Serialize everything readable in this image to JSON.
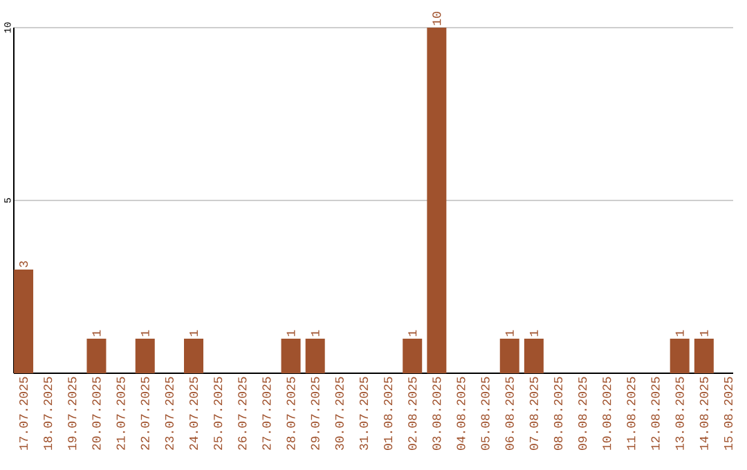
{
  "chart_data": {
    "type": "bar",
    "categories": [
      "17.07.2025",
      "18.07.2025",
      "19.07.2025",
      "20.07.2025",
      "21.07.2025",
      "22.07.2025",
      "23.07.2025",
      "24.07.2025",
      "25.07.2025",
      "26.07.2025",
      "27.07.2025",
      "28.07.2025",
      "29.07.2025",
      "30.07.2025",
      "31.07.2025",
      "01.08.2025",
      "02.08.2025",
      "03.08.2025",
      "04.08.2025",
      "05.08.2025",
      "06.08.2025",
      "07.08.2025",
      "08.08.2025",
      "09.08.2025",
      "10.08.2025",
      "11.08.2025",
      "12.08.2025",
      "13.08.2025",
      "14.08.2025",
      "15.08.2025"
    ],
    "values": [
      3,
      0,
      0,
      1,
      0,
      1,
      0,
      1,
      0,
      0,
      0,
      1,
      1,
      0,
      0,
      0,
      1,
      10,
      0,
      0,
      1,
      1,
      0,
      0,
      0,
      0,
      0,
      1,
      1,
      0
    ],
    "value_labels": [
      "3",
      null,
      null,
      "1",
      null,
      "1",
      null,
      "1",
      null,
      null,
      null,
      "1",
      "1",
      null,
      null,
      null,
      "1",
      "10",
      null,
      null,
      "1",
      "1",
      null,
      null,
      null,
      null,
      null,
      "1",
      "1",
      null
    ],
    "color": "#a0522d",
    "ylim": [
      0,
      10
    ],
    "yticks": [
      5,
      10
    ],
    "grid": "y"
  }
}
